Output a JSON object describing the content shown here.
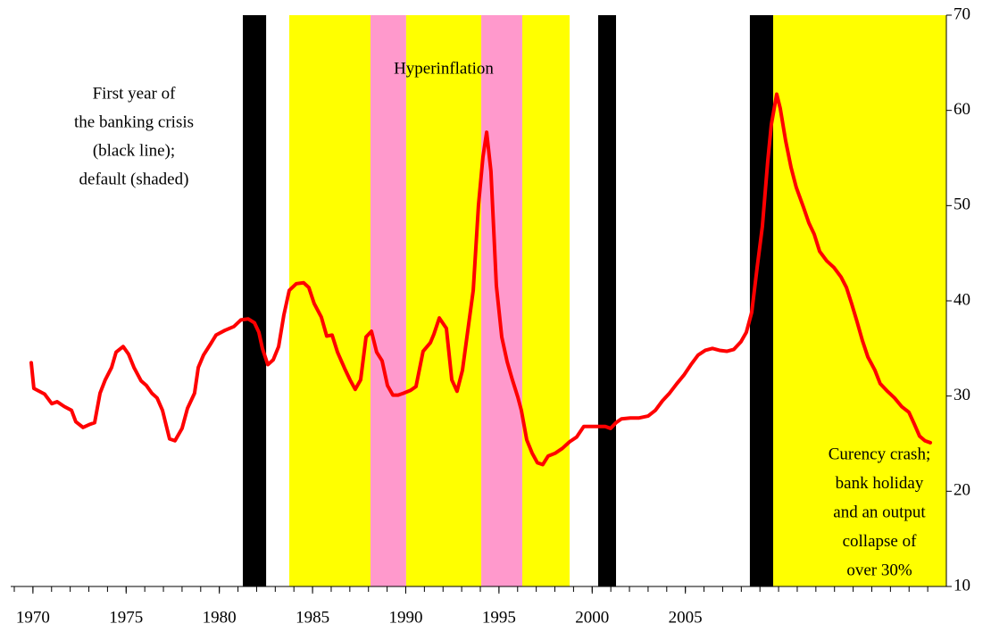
{
  "chart_data": {
    "type": "line",
    "color": "#ff0000",
    "xlim": [
      1969,
      2019
    ],
    "xticks": [
      1970,
      1975,
      1980,
      1985,
      1990,
      1995,
      2000,
      2005
    ],
    "xminor_step": 1,
    "ylim": [
      10,
      70
    ],
    "yticks": [
      10,
      20,
      30,
      40,
      50,
      60,
      70
    ],
    "y_axis_side": "right",
    "shading": [
      {
        "start": 1981.26,
        "end": 1982.51,
        "color": "#000000"
      },
      {
        "start": 1983.75,
        "end": 1988.11,
        "color": "#ffff00"
      },
      {
        "start": 1988.11,
        "end": 1990.02,
        "color": "#ff99cc"
      },
      {
        "start": 1990.02,
        "end": 1994.05,
        "color": "#ffff00"
      },
      {
        "start": 1994.05,
        "end": 1996.25,
        "color": "#ff99cc"
      },
      {
        "start": 1996.25,
        "end": 1998.79,
        "color": "#ffff00"
      },
      {
        "start": 2000.32,
        "end": 2001.28,
        "color": "#000000"
      },
      {
        "start": 2008.46,
        "end": 2009.71,
        "color": "#000000"
      },
      {
        "start": 2009.71,
        "end": 2019,
        "color": "#ffff00"
      }
    ],
    "annotations": [
      {
        "lines": [
          "First year of",
          "the banking crisis",
          "(black line);",
          "default (shaded)"
        ]
      },
      {
        "lines": [
          "Hyperinflation"
        ]
      },
      {
        "lines": [
          "Curency crash;",
          "bank holiday",
          "and an output",
          "collapse of",
          "over 30%"
        ]
      }
    ],
    "x": [
      1969.91,
      1970.05,
      1970.63,
      1971.01,
      1971.3,
      1971.68,
      1972.07,
      1972.3,
      1972.69,
      1973.02,
      1973.31,
      1973.6,
      1973.88,
      1974.22,
      1974.46,
      1974.84,
      1975.13,
      1975.42,
      1975.8,
      1976.09,
      1976.38,
      1976.66,
      1976.95,
      1977.33,
      1977.62,
      1978.0,
      1978.29,
      1978.67,
      1978.87,
      1979.15,
      1979.54,
      1979.82,
      1980.3,
      1980.78,
      1981.16,
      1981.55,
      1981.88,
      1982.12,
      1982.31,
      1982.6,
      1982.89,
      1983.18,
      1983.46,
      1983.75,
      1984.13,
      1984.52,
      1984.8,
      1985.09,
      1985.47,
      1985.76,
      1986.05,
      1986.34,
      1986.72,
      1987.01,
      1987.29,
      1987.58,
      1987.87,
      1988.16,
      1988.44,
      1988.73,
      1989.02,
      1989.31,
      1989.59,
      1989.88,
      1990.26,
      1990.55,
      1990.93,
      1991.32,
      1991.51,
      1991.8,
      1992.18,
      1992.47,
      1992.75,
      1993.04,
      1993.33,
      1993.62,
      1993.9,
      1994.14,
      1994.34,
      1994.57,
      1994.86,
      1995.15,
      1995.44,
      1995.72,
      1996.01,
      1996.2,
      1996.49,
      1996.78,
      1997.06,
      1997.35,
      1997.64,
      1998.02,
      1998.4,
      1998.79,
      1999.17,
      1999.55,
      1999.94,
      2000.32,
      2000.7,
      2000.99,
      2001.28,
      2001.57,
      2002.05,
      2002.52,
      2003.0,
      2003.39,
      2003.77,
      2004.15,
      2004.54,
      2004.92,
      2005.3,
      2005.68,
      2006.07,
      2006.45,
      2006.83,
      2007.22,
      2007.6,
      2007.98,
      2008.27,
      2008.56,
      2008.85,
      2009.13,
      2009.42,
      2009.61,
      2009.9,
      2010.09,
      2010.38,
      2010.67,
      2010.95,
      2011.34,
      2011.62,
      2011.91,
      2012.2,
      2012.58,
      2012.97,
      2013.35,
      2013.64,
      2013.92,
      2014.21,
      2014.5,
      2014.79,
      2015.17,
      2015.45,
      2015.84,
      2016.22,
      2016.6,
      2016.99,
      2017.27,
      2017.56,
      2017.85,
      2018.14
    ],
    "values": [
      33.5,
      30.8,
      30.2,
      29.2,
      29.4,
      28.9,
      28.5,
      27.3,
      26.7,
      27.0,
      27.2,
      30.3,
      31.7,
      33.0,
      34.6,
      35.2,
      34.4,
      33.0,
      31.6,
      31.1,
      30.3,
      29.8,
      28.5,
      25.5,
      25.3,
      26.6,
      28.7,
      30.3,
      33.0,
      34.3,
      35.5,
      36.4,
      36.9,
      37.3,
      38.0,
      38.1,
      37.7,
      36.7,
      35.0,
      33.3,
      33.8,
      35.2,
      38.5,
      41.1,
      41.8,
      41.9,
      41.4,
      39.7,
      38.3,
      36.3,
      36.4,
      34.6,
      32.9,
      31.7,
      30.7,
      31.7,
      36.2,
      36.8,
      34.6,
      33.7,
      31.1,
      30.1,
      30.1,
      30.3,
      30.6,
      31.0,
      34.7,
      35.6,
      36.5,
      38.2,
      37.1,
      31.7,
      30.5,
      32.7,
      36.9,
      41.1,
      50.0,
      55.1,
      57.7,
      53.6,
      41.6,
      36.2,
      33.6,
      31.7,
      29.9,
      28.5,
      25.4,
      24.0,
      23.0,
      22.8,
      23.7,
      24.0,
      24.5,
      25.2,
      25.7,
      26.8,
      26.8,
      26.8,
      26.8,
      26.6,
      27.2,
      27.6,
      27.7,
      27.7,
      27.9,
      28.5,
      29.5,
      30.3,
      31.3,
      32.2,
      33.3,
      34.3,
      34.8,
      35.0,
      34.8,
      34.7,
      34.9,
      35.7,
      36.7,
      38.8,
      43.5,
      47.8,
      54.7,
      58.5,
      61.7,
      60.2,
      56.8,
      54.0,
      51.9,
      49.8,
      48.2,
      47.0,
      45.2,
      44.2,
      43.5,
      42.5,
      41.4,
      39.7,
      37.8,
      35.8,
      34.1,
      32.7,
      31.3,
      30.5,
      29.8,
      28.9,
      28.3,
      27.1,
      25.8,
      25.3,
      25.1
    ]
  }
}
